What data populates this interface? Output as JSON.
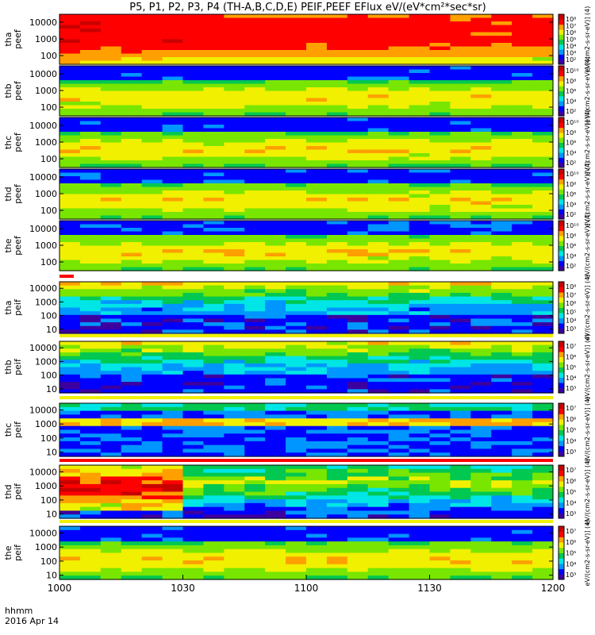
{
  "chart_data": {
    "type": "heatmap",
    "title": "P5, P1, P2, P3, P4 (TH-A,B,C,D,E) PEIF,PEEF EFlux eV/(eV*cm²*sec*sr)",
    "x_axis": {
      "ticks": [
        "1000",
        "1030",
        "1100",
        "1130",
        "1200"
      ],
      "corner_label": [
        "hhmm",
        "2016 Apr 14"
      ]
    },
    "cbar_side_label": "[eV/(cm2-s-sr-eV)] (4)",
    "panels": [
      {
        "probe": "tha",
        "species": "peef",
        "label": [
          "tha",
          "peef"
        ],
        "y_ticks": [
          "10000",
          "1000",
          "100"
        ],
        "y_range_eV": [
          30,
          30000
        ],
        "cbar_ticks": [
          "10⁸",
          "10⁷",
          "10⁶",
          "10⁵",
          "10⁴",
          "10³",
          "10²"
        ],
        "cbar_label": "eV/(cm2-s-sr-eV)] (4)",
        "dominant_level": "high"
      },
      {
        "probe": "thb",
        "species": "peef",
        "label": [
          "thb",
          "peef"
        ],
        "y_ticks": [
          "10000",
          "1000",
          "100"
        ],
        "y_range_eV": [
          30,
          30000
        ],
        "cbar_ticks": [
          "10¹⁰",
          "10⁸",
          "10⁶",
          "10⁴",
          "10²"
        ],
        "cbar_label": "(eV/(cm2-s-sr-eV)] (4)",
        "dominant_level": "medium"
      },
      {
        "probe": "thc",
        "species": "peef",
        "label": [
          "thc",
          "peef"
        ],
        "y_ticks": [
          "10000",
          "1000",
          "100"
        ],
        "y_range_eV": [
          30,
          30000
        ],
        "cbar_ticks": [
          "10¹⁰",
          "10⁸",
          "10⁶",
          "10⁴",
          "10²"
        ],
        "cbar_label": "eV/(cm2-s-sr-eV)] (4)",
        "dominant_level": "medium"
      },
      {
        "probe": "thd",
        "species": "peef",
        "label": [
          "thd",
          "peef"
        ],
        "y_ticks": [
          "10000",
          "1000",
          "100"
        ],
        "y_range_eV": [
          30,
          30000
        ],
        "cbar_ticks": [
          "10¹⁰",
          "10⁸",
          "10⁶",
          "10⁴",
          "10²"
        ],
        "cbar_label": "eV/(cm2-s-sr-eV)] (4)",
        "dominant_level": "medium"
      },
      {
        "probe": "the",
        "species": "peef",
        "label": [
          "the",
          "peef"
        ],
        "y_ticks": [
          "10000",
          "1000",
          "100"
        ],
        "y_range_eV": [
          30,
          30000
        ],
        "cbar_ticks": [
          "10¹⁰",
          "10⁸",
          "10⁶",
          "10⁴",
          "10²"
        ],
        "cbar_label": "eV/(cm2-s-sr-eV)] (4)",
        "dominant_level": "medium"
      },
      {
        "probe": "tha",
        "species": "peif",
        "label": [
          "tha",
          "peif"
        ],
        "y_ticks": [
          "10000",
          "1000",
          "100",
          "10"
        ],
        "y_range_eV": [
          5,
          30000
        ],
        "cbar_ticks": [
          "10⁸",
          "10⁷",
          "10⁶",
          "10⁵",
          "10⁴",
          "10³"
        ],
        "cbar_label": "eV/(cm2-s-sr-eV)] (4)",
        "dominant_level": "low-high"
      },
      {
        "probe": "thb",
        "species": "peif",
        "label": [
          "thb",
          "peif"
        ],
        "y_ticks": [
          "10000",
          "1000",
          "100",
          "10"
        ],
        "y_range_eV": [
          5,
          30000
        ],
        "cbar_ticks": [
          "10⁷",
          "10⁶",
          "10⁵",
          "10⁴",
          "10³"
        ],
        "cbar_label": "eV/(cm2-s-sr-eV)] (4)",
        "dominant_level": "low-high"
      },
      {
        "probe": "thc",
        "species": "peif",
        "label": [
          "thc",
          "peif"
        ],
        "y_ticks": [
          "10000",
          "1000",
          "100",
          "10"
        ],
        "y_range_eV": [
          5,
          30000
        ],
        "cbar_ticks": [
          "10⁷",
          "10⁶",
          "10⁵",
          "10⁴",
          "10³"
        ],
        "cbar_label": "eV/(cm2-s-sr-eV)] (4)",
        "dominant_level": "low"
      },
      {
        "probe": "thd",
        "species": "peif",
        "label": [
          "thd",
          "peif"
        ],
        "y_ticks": [
          "10000",
          "1000",
          "100",
          "10"
        ],
        "y_range_eV": [
          5,
          30000
        ],
        "cbar_ticks": [
          "10⁷",
          "10⁶",
          "10⁵",
          "10⁴",
          "10³"
        ],
        "cbar_label": "eV/(cm2-s-sr-eV)] (4)",
        "dominant_level": "high-low"
      },
      {
        "probe": "the",
        "species": "peif",
        "label": [
          "the",
          "peif"
        ],
        "y_ticks": [
          "10000",
          "1000",
          "100",
          "10"
        ],
        "y_range_eV": [
          5,
          30000
        ],
        "cbar_ticks": [
          "10⁷",
          "10⁶",
          "10⁵",
          "10⁴",
          "10³"
        ],
        "cbar_label": "eV/(cm2-s-sr-eV)] (4)",
        "dominant_level": "medium"
      }
    ],
    "colormap": [
      "#3c00a0",
      "#0000ff",
      "#0096ff",
      "#00e6e6",
      "#00c850",
      "#78e600",
      "#f0f000",
      "#ffa000",
      "#ff0000",
      "#c80000"
    ]
  }
}
